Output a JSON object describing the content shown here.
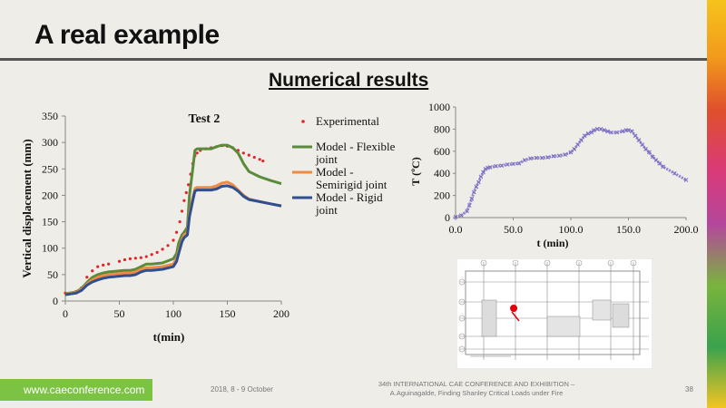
{
  "slide": {
    "title": "A real example",
    "subtitle": "Numerical results",
    "footer": {
      "url": "www.caeconference.com",
      "date": "2018, 8 -  9 October",
      "conference_line1": "34th INTERNATIONAL CAE CONFERENCE AND EXHIBITION –",
      "conference_line2": "A.Aguinagalde, Finding Shanley Critical Loads under Fire",
      "page": "38"
    }
  },
  "chart_data": [
    {
      "type": "line",
      "title": "Test 2",
      "xlabel": "t(min)",
      "ylabel": "Vertical displacement  (mm)",
      "xlim": [
        0,
        200
      ],
      "ylim": [
        0,
        350
      ],
      "xticks": [
        "0",
        "50",
        "100",
        "150",
        "200"
      ],
      "yticks": [
        "0",
        "50",
        "100",
        "150",
        "200",
        "250",
        "300",
        "350"
      ],
      "legend_position": "right",
      "series": [
        {
          "name": "Experimental",
          "style": "dots",
          "color": "#e3242b",
          "x": [
            0,
            10,
            15,
            20,
            25,
            30,
            35,
            40,
            50,
            55,
            60,
            65,
            70,
            75,
            80,
            85,
            90,
            95,
            100,
            103,
            106,
            108,
            110,
            112,
            114,
            116,
            118,
            120,
            122,
            125,
            130,
            135,
            140,
            145,
            150,
            155,
            160,
            165,
            170,
            175,
            180,
            183
          ],
          "y": [
            15,
            18,
            25,
            45,
            57,
            65,
            68,
            70,
            75,
            78,
            80,
            81,
            82,
            84,
            88,
            92,
            98,
            105,
            115,
            130,
            150,
            170,
            190,
            205,
            220,
            240,
            260,
            275,
            280,
            285,
            288,
            290,
            292,
            294,
            293,
            290,
            285,
            280,
            276,
            272,
            268,
            265
          ]
        },
        {
          "name": "Model - Flexible joint",
          "style": "line",
          "color": "#5a8a3a",
          "x": [
            0,
            10,
            15,
            20,
            25,
            30,
            35,
            40,
            50,
            55,
            60,
            65,
            70,
            75,
            80,
            90,
            100,
            103,
            105,
            108,
            110,
            113,
            115,
            118,
            120,
            122,
            125,
            130,
            135,
            140,
            145,
            150,
            155,
            160,
            165,
            170,
            180,
            190,
            200
          ],
          "y": [
            14,
            17,
            24,
            35,
            45,
            50,
            53,
            55,
            57,
            58,
            58,
            60,
            65,
            70,
            70,
            72,
            80,
            90,
            110,
            125,
            130,
            140,
            200,
            250,
            285,
            288,
            288,
            288,
            288,
            292,
            295,
            295,
            290,
            280,
            260,
            245,
            235,
            228,
            222
          ]
        },
        {
          "name": "Model - Semirigid joint",
          "style": "line",
          "color": "#ee8a42",
          "x": [
            0,
            10,
            15,
            20,
            25,
            30,
            35,
            40,
            50,
            55,
            60,
            65,
            70,
            75,
            80,
            90,
            100,
            103,
            105,
            108,
            110,
            113,
            115,
            118,
            120,
            122,
            125,
            130,
            135,
            140,
            145,
            150,
            155,
            160,
            165,
            170,
            180,
            190,
            200
          ],
          "y": [
            13,
            16,
            22,
            32,
            40,
            45,
            48,
            50,
            52,
            53,
            53,
            55,
            60,
            63,
            63,
            65,
            70,
            80,
            95,
            115,
            125,
            130,
            165,
            195,
            213,
            215,
            215,
            215,
            215,
            218,
            223,
            225,
            220,
            210,
            200,
            193,
            188,
            184,
            180
          ]
        },
        {
          "name": "Model - Rigid joint",
          "style": "line",
          "color": "#2f4f8f",
          "x": [
            0,
            10,
            15,
            20,
            25,
            30,
            35,
            40,
            50,
            55,
            60,
            65,
            70,
            75,
            80,
            90,
            100,
            103,
            105,
            108,
            110,
            113,
            115,
            118,
            120,
            122,
            125,
            130,
            135,
            140,
            145,
            150,
            155,
            160,
            165,
            170,
            180,
            190,
            200
          ],
          "y": [
            12,
            15,
            20,
            30,
            36,
            40,
            43,
            45,
            47,
            48,
            48,
            50,
            55,
            58,
            58,
            60,
            65,
            75,
            90,
            112,
            120,
            125,
            160,
            190,
            208,
            210,
            210,
            210,
            210,
            212,
            217,
            218,
            215,
            208,
            198,
            192,
            188,
            184,
            180
          ]
        }
      ]
    },
    {
      "type": "scatter",
      "title": "",
      "xlabel": "t (min)",
      "ylabel": "T (ºC)",
      "xlim": [
        0,
        200
      ],
      "ylim": [
        0,
        1000
      ],
      "xticks": [
        "0.0",
        "50.0",
        "100.0",
        "150.0",
        "200.0"
      ],
      "yticks": [
        "0",
        "200",
        "400",
        "600",
        "800",
        "1000"
      ],
      "series": [
        {
          "name": "",
          "color": "#7b6ec6",
          "x": [
            0,
            5,
            10,
            12,
            14,
            16,
            18,
            20,
            22,
            24,
            26,
            28,
            30,
            35,
            40,
            45,
            50,
            55,
            60,
            65,
            70,
            75,
            80,
            85,
            90,
            95,
            100,
            103,
            106,
            109,
            112,
            115,
            118,
            120,
            123,
            126,
            129,
            132,
            135,
            140,
            145,
            148,
            150,
            153,
            156,
            159,
            162,
            165,
            168,
            171,
            174,
            177,
            180,
            190,
            200
          ],
          "y": [
            5,
            20,
            60,
            110,
            170,
            230,
            280,
            320,
            370,
            410,
            440,
            450,
            455,
            465,
            470,
            480,
            485,
            490,
            520,
            535,
            540,
            540,
            545,
            555,
            560,
            570,
            590,
            620,
            660,
            700,
            740,
            760,
            770,
            790,
            800,
            800,
            790,
            780,
            770,
            770,
            780,
            790,
            790,
            780,
            740,
            700,
            660,
            620,
            590,
            550,
            520,
            490,
            460,
            400,
            340
          ]
        }
      ]
    }
  ],
  "drawing": {
    "icon": "floor-plan-icon"
  }
}
